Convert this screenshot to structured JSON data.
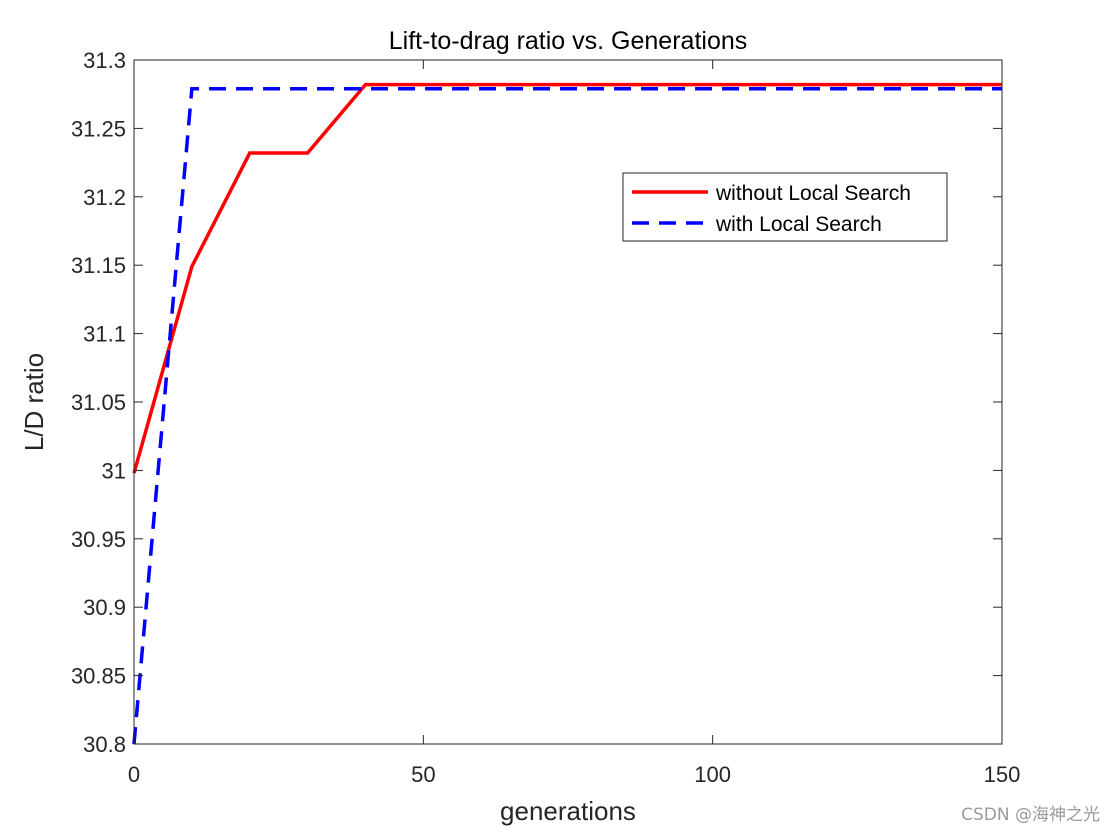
{
  "chart_data": {
    "type": "line",
    "title": "Lift-to-drag ratio vs. Generations",
    "xlabel": "generations",
    "ylabel": "L/D ratio",
    "xlim": [
      0,
      150
    ],
    "ylim": [
      30.8,
      31.3
    ],
    "xticks": [
      0,
      50,
      100,
      150
    ],
    "xtick_labels": [
      "0",
      "50",
      "100",
      "150"
    ],
    "yticks": [
      30.8,
      30.85,
      30.9,
      30.95,
      31,
      31.05,
      31.1,
      31.15,
      31.2,
      31.25,
      31.3
    ],
    "ytick_labels": [
      "30.8",
      "30.85",
      "30.9",
      "30.95",
      "31",
      "31.05",
      "31.1",
      "31.15",
      "31.2",
      "31.25",
      "31.3"
    ],
    "grid": false,
    "legend_position": "upper-right-inset",
    "series": [
      {
        "name": "without Local Search",
        "color": "#ff0000",
        "style": "solid",
        "x": [
          0,
          10,
          20,
          30,
          40,
          150
        ],
        "y": [
          30.998,
          31.149,
          31.232,
          31.232,
          31.282,
          31.282
        ]
      },
      {
        "name": "with Local Search",
        "color": "#0000ff",
        "style": "dashed",
        "x": [
          0,
          10,
          150
        ],
        "y": [
          30.8,
          31.279,
          31.279
        ]
      }
    ]
  },
  "watermark": "CSDN @海神之光"
}
